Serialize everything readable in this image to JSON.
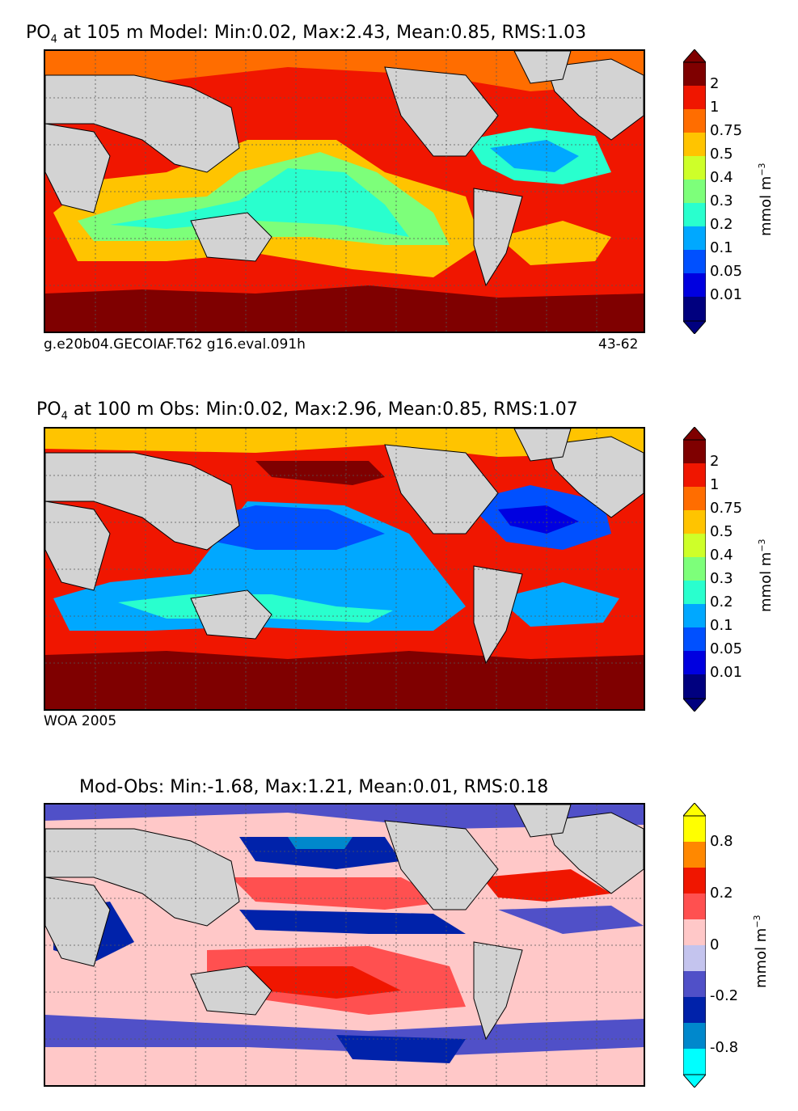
{
  "panels": [
    {
      "title_prefix": "PO",
      "title_sub": "4",
      "title_rest": " at 105 m Model: Min:0.02, Max:2.43, Mean:0.85, RMS:1.03",
      "footer_left": "g.e20b04.GECOIAF.T62 g16.eval.091h",
      "footer_right": "43-62",
      "colorbar_ticks": [
        "2",
        "1",
        "0.75",
        "0.5",
        "0.4",
        "0.3",
        "0.2",
        "0.1",
        "0.05",
        "0.01"
      ],
      "unit": "mmol m",
      "unit_exp": "−3"
    },
    {
      "title_prefix": "PO",
      "title_sub": "4",
      "title_rest": " at 100 m Obs: Min:0.02, Max:2.96, Mean:0.85, RMS:1.07",
      "footer_left": "WOA 2005",
      "footer_right": "",
      "colorbar_ticks": [
        "2",
        "1",
        "0.75",
        "0.5",
        "0.4",
        "0.3",
        "0.2",
        "0.1",
        "0.05",
        "0.01"
      ],
      "unit": "mmol m",
      "unit_exp": "−3"
    },
    {
      "title_prefix": "",
      "title_sub": "",
      "title_rest": "Mod-Obs: Min:-1.68, Max:1.21, Mean:0.01, RMS:0.18",
      "footer_left": "",
      "footer_right": "",
      "colorbar_ticks": [
        "0.8",
        "0.2",
        "0",
        "-0.2",
        "-0.8"
      ],
      "unit": "mmol m",
      "unit_exp": "−3"
    }
  ],
  "colors": {
    "land": "#d3d3d3",
    "po4_scale": [
      "#00007f",
      "#0000e0",
      "#0050ff",
      "#00a8ff",
      "#29ffce",
      "#7dff7a",
      "#ceff29",
      "#ffc400",
      "#ff6d00",
      "#f01600",
      "#7f0000"
    ],
    "diff_scale": [
      "#00ffff",
      "#0088cc",
      "#0022aa",
      "#5050c8",
      "#c4c4ee",
      "#ffc8c8",
      "#ff5050",
      "#f01600",
      "#ff8800",
      "#ffff00"
    ]
  }
}
